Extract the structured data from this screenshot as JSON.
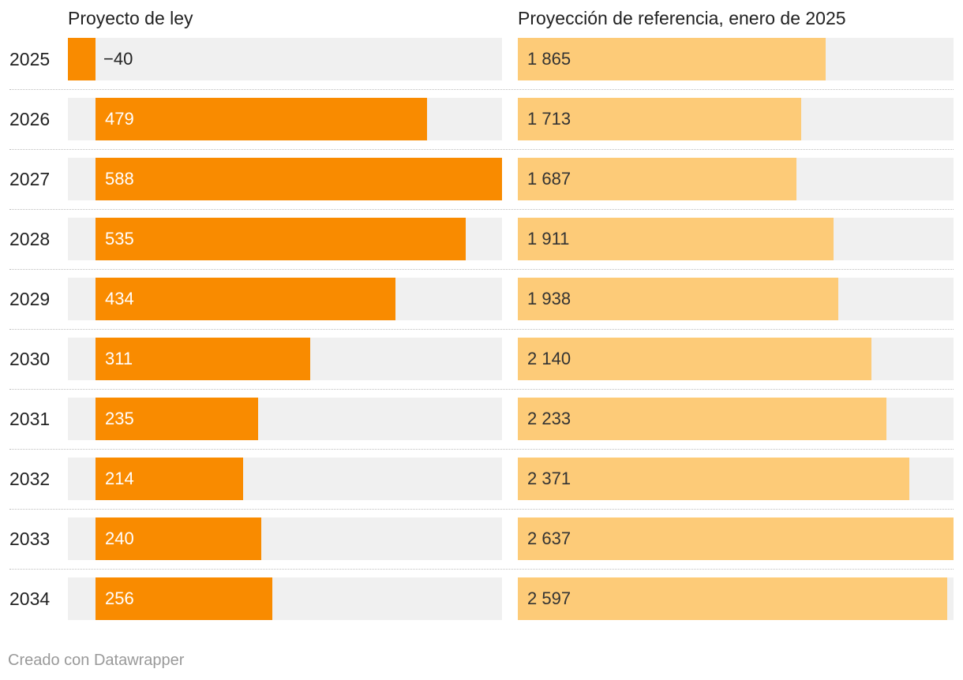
{
  "chart_data": {
    "type": "bar",
    "orientation": "horizontal",
    "categories": [
      "2025",
      "2026",
      "2027",
      "2028",
      "2029",
      "2030",
      "2031",
      "2032",
      "2033",
      "2034"
    ],
    "series": [
      {
        "name": "Proyecto de ley",
        "color": "#f98b00",
        "values": [
          -40,
          479,
          588,
          535,
          434,
          311,
          235,
          214,
          240,
          256
        ],
        "labels": [
          "−40",
          "479",
          "588",
          "535",
          "434",
          "311",
          "235",
          "214",
          "240",
          "256"
        ],
        "range": [
          -40,
          588
        ]
      },
      {
        "name": "Proyección de referencia, enero de 2025",
        "color": "#fdcb78",
        "values": [
          1865,
          1713,
          1687,
          1911,
          1938,
          2140,
          2233,
          2371,
          2637,
          2597
        ],
        "labels": [
          "1 865",
          "1 713",
          "1 687",
          "1 911",
          "1 938",
          "2 140",
          "2 233",
          "2 371",
          "2 637",
          "2 597"
        ],
        "range": [
          0,
          2637
        ]
      }
    ],
    "track_color": "#f0f0f0",
    "footer": "Creado con Datawrapper"
  }
}
